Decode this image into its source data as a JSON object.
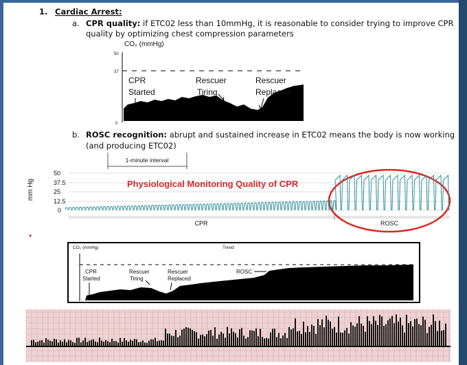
{
  "header": {
    "number": "1.",
    "title": "Cardiac Arrest:"
  },
  "items": [
    {
      "letter": "a.",
      "label": "CPR quality:",
      "lines": [
        " if ETC02 less than 10mmHg, it is reasonable to consider trying to improve CPR",
        "quality by optimizing chest compression parameters"
      ]
    },
    {
      "letter": "b.",
      "label": "ROSC recognition:",
      "lines": [
        " abrupt and sustained increase in ETC02 means the body is now working",
        "(and producing ETC02)"
      ]
    }
  ],
  "figure1": {
    "axis_label": "CO₂ (mmHg)",
    "ticks": [
      "50",
      "37",
      "0"
    ],
    "annotations": [
      "CPR",
      "Started",
      "Rescuer",
      "Tiring",
      "Rescuer",
      "Replaced"
    ]
  },
  "figure2": {
    "interval_label": "1-minute interval",
    "axis_label": "mm Hg",
    "ticks": [
      "50",
      "37.5",
      "25",
      "12.5",
      "0"
    ],
    "title": "Physiological Monitoring Quality of CPR",
    "phases": [
      "CPR",
      "ROSC"
    ]
  },
  "figure3": {
    "axis_label": "CO₂ (mmHg)",
    "trend": "Trend",
    "annotations": [
      "CPR",
      "Started",
      "Rescuer",
      "Tiring",
      "Rescuer",
      "Replaced",
      "ROSC"
    ]
  }
}
